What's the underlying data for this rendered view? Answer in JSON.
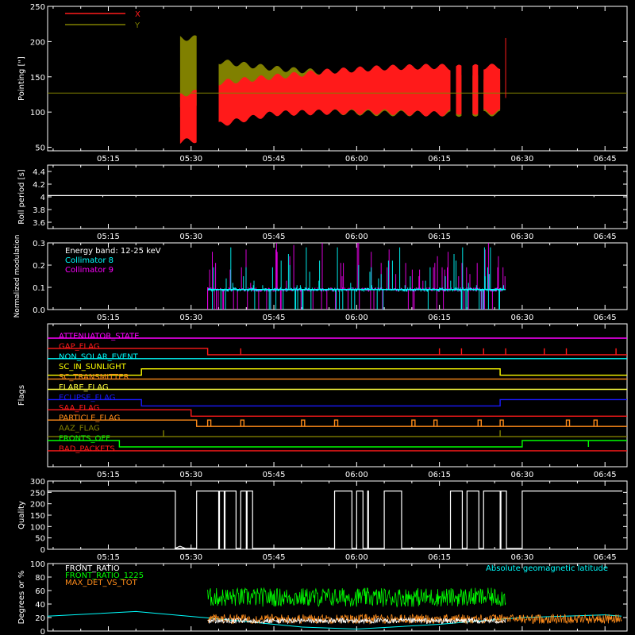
{
  "colors": {
    "background": "#000000",
    "foreground": "#ffffff",
    "x": "#ff1a1a",
    "y": "#808000",
    "cyan": "#00ffff",
    "magenta": "#ff00ff",
    "green": "#00ff00",
    "orange": "#ff8c1a",
    "blue": "#1a1aff"
  },
  "time_ticks": [
    "05:15",
    "05:30",
    "05:45",
    "06:00",
    "06:15",
    "06:30",
    "06:45"
  ],
  "chart_data": [
    {
      "id": "pointing",
      "type": "area",
      "ylabel": "Pointing [\"]",
      "ylim": [
        45,
        250
      ],
      "yticks": [
        50,
        100,
        150,
        200,
        250
      ],
      "legend": {
        "placement": "top-left",
        "entries": [
          "X",
          "Y"
        ]
      },
      "baseline": 127,
      "series": [
        {
          "name": "X",
          "x": [
            "05:28",
            "05:31",
            "05:35",
            "05:45",
            "05:55",
            "06:05",
            "06:15",
            "06:17",
            "06:26"
          ],
          "upper": [
            125,
            128,
            142,
            150,
            158,
            163,
            165,
            163,
            165
          ],
          "lower": [
            58,
            60,
            82,
            98,
            100,
            100,
            97,
            100,
            100
          ]
        },
        {
          "name": "Y",
          "x": [
            "05:28",
            "05:31",
            "05:35",
            "05:45",
            "05:55",
            "06:05",
            "06:15",
            "06:17",
            "06:26"
          ],
          "upper": [
            205,
            205,
            172,
            162,
            156,
            152,
            152,
            150,
            150
          ],
          "lower": [
            110,
            112,
            115,
            105,
            100,
            98,
            98,
            97,
            98
          ]
        }
      ],
      "gaps": [
        [
          "05:31",
          "05:35"
        ],
        [
          "06:17",
          "06:18"
        ],
        [
          "06:19",
          "06:21"
        ],
        [
          "06:22",
          "06:23"
        ]
      ]
    },
    {
      "id": "roll",
      "type": "line",
      "ylabel": "Roll period [s]",
      "ylim": [
        3.5,
        4.5
      ],
      "yticks": [
        3.6,
        3.8,
        4.0,
        4.2,
        4.4
      ],
      "value": 4.02
    },
    {
      "id": "modulation",
      "type": "bar",
      "ylabel": "Normalized modulation",
      "ylim": [
        0,
        0.3
      ],
      "yticks": [
        "0.0",
        "0.1",
        "0.2",
        "0.3"
      ],
      "legend": {
        "placement": "top-left",
        "entries": [
          "Energy band: 12-25 keV",
          "Collimator 8",
          "Collimator 9"
        ]
      },
      "x_range": [
        "05:33",
        "06:27"
      ],
      "series": [
        {
          "name": "Collimator 8",
          "base": 0.09,
          "spikes": [
            0.16,
            0.25,
            0.13,
            0.2,
            0.11,
            0.19,
            0.28,
            0.14,
            0.17,
            0.22,
            0.12,
            0.15
          ]
        },
        {
          "name": "Collimator 9",
          "base": 0.09,
          "spikes": [
            0.18,
            0.27,
            0.3,
            0.12,
            0.21,
            0.16,
            0.24,
            0.29,
            0.13,
            0.19,
            0.26,
            0.15
          ]
        }
      ]
    },
    {
      "id": "flags",
      "type": "line",
      "ylabel": "Flags",
      "series": [
        {
          "name": "ATTENUATOR_STATE"
        },
        {
          "name": "GAP_FLAG"
        },
        {
          "name": "NON_SOLAR_EVENT"
        },
        {
          "name": "SC_IN_SUNLIGHT"
        },
        {
          "name": "SC_TRANSMITTER"
        },
        {
          "name": "FLARE_FLAG"
        },
        {
          "name": "ECLIPSE_FLAG"
        },
        {
          "name": "SAA_FLAG"
        },
        {
          "name": "PARTICLE_FLAG"
        },
        {
          "name": "AAZ_FLAG"
        },
        {
          "name": "FRONTS_OFF"
        },
        {
          "name": "BAD_PACKETS"
        }
      ]
    },
    {
      "id": "quality",
      "type": "line",
      "ylabel": "Quality",
      "ylim": [
        0,
        300
      ],
      "yticks": [
        0,
        50,
        100,
        150,
        200,
        250,
        300
      ],
      "high_value": 256,
      "high_intervals": [
        [
          "05:04",
          "05:27"
        ],
        [
          "05:31",
          "05:35"
        ],
        [
          "05:35",
          "05:36"
        ],
        [
          "05:36",
          "05:38"
        ],
        [
          "05:39",
          "05:40"
        ],
        [
          "05:40",
          "05:41"
        ],
        [
          "05:56",
          "05:59"
        ],
        [
          "06:00",
          "06:01"
        ],
        [
          "06:02",
          "06:02"
        ],
        [
          "06:05",
          "06:08"
        ],
        [
          "06:17",
          "06:19"
        ],
        [
          "06:20",
          "06:22"
        ],
        [
          "06:23",
          "06:26"
        ],
        [
          "06:26",
          "06:27"
        ],
        [
          "06:30",
          "06:48"
        ]
      ]
    },
    {
      "id": "ratios",
      "type": "line",
      "ylabel": "Degrees or %",
      "ylim": [
        0,
        100
      ],
      "yticks": [
        0,
        20,
        40,
        60,
        80,
        100
      ],
      "legend": {
        "placement": "top-left",
        "entries": [
          "FRONT_RATIO",
          "FRONT_RATIO_1225",
          "MAX_DET_VS_TOT"
        ]
      },
      "annotation": "Absolute geomagnetic latitude",
      "series": [
        {
          "name": "FRONT_RATIO",
          "mean": 15
        },
        {
          "name": "FRONT_RATIO_1225",
          "mean": 50,
          "x_range": [
            "05:33",
            "06:27"
          ]
        },
        {
          "name": "MAX_DET_VS_TOT",
          "mean": 18
        },
        {
          "name": "Absolute geomagnetic latitude",
          "x": [
            "05:04",
            "05:20",
            "05:35",
            "05:50",
            "06:00",
            "06:15",
            "06:30",
            "06:45",
            "06:48"
          ],
          "values": [
            22,
            29,
            18,
            6,
            3,
            10,
            20,
            24,
            22
          ]
        }
      ]
    }
  ]
}
